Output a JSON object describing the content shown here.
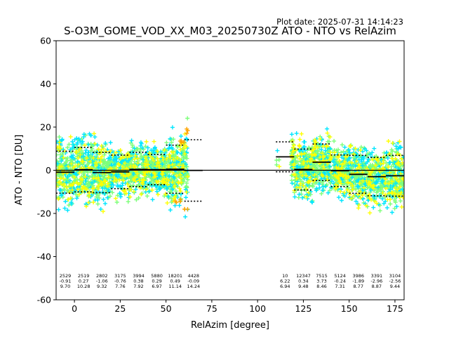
{
  "plot_date": "Plot date: 2025-07-31 14:14:23",
  "chart_data": {
    "type": "scatter",
    "title": "S-O3M_GOME_VOD_XX_M03_20250730Z ATO - NTO vs RelAzim",
    "xlabel": "RelAzim [degree]",
    "ylabel": "ATO - NTO [DU]",
    "xlim": [
      -10,
      180
    ],
    "ylim": [
      -60,
      60
    ],
    "xticks": [
      0,
      25,
      50,
      75,
      100,
      125,
      150,
      175
    ],
    "yticks": [
      -60,
      -40,
      -20,
      0,
      20,
      40,
      60
    ],
    "grid": false,
    "marker": "+",
    "colormap": [
      "#0030f0",
      "#00e6ff",
      "#7dff7a",
      "#ffff00",
      "#ffa500"
    ],
    "zero_line": 0,
    "bins": [
      {
        "x": [
          -10,
          0
        ],
        "count": "2529",
        "mean": "-0.91",
        "std": "9.70"
      },
      {
        "x": [
          0,
          10
        ],
        "count": "2519",
        "mean": "0.27",
        "std": "10.28"
      },
      {
        "x": [
          10,
          20
        ],
        "count": "2802",
        "mean": "-1.06",
        "std": "9.32"
      },
      {
        "x": [
          20,
          30
        ],
        "count": "3175",
        "mean": "-0.76",
        "std": "7.76"
      },
      {
        "x": [
          30,
          40
        ],
        "count": "3994",
        "mean": "0.38",
        "std": "7.92"
      },
      {
        "x": [
          40,
          50
        ],
        "count": "5880",
        "mean": "0.29",
        "std": "6.97"
      },
      {
        "x": [
          50,
          60
        ],
        "count": "18201",
        "mean": "0.49",
        "std": "11.14"
      },
      {
        "x": [
          60,
          70
        ],
        "count": "4428",
        "mean": "-0.09",
        "std": "14.24"
      },
      {
        "x": [
          110,
          120
        ],
        "count": "10",
        "mean": "6.22",
        "std": "6.94"
      },
      {
        "x": [
          120,
          130
        ],
        "count": "12347",
        "mean": "0.34",
        "std": "9.48"
      },
      {
        "x": [
          130,
          140
        ],
        "count": "7515",
        "mean": "3.73",
        "std": "8.46"
      },
      {
        "x": [
          140,
          150
        ],
        "count": "5124",
        "mean": "-0.24",
        "std": "7.31"
      },
      {
        "x": [
          150,
          160
        ],
        "count": "3986",
        "mean": "-1.89",
        "std": "8.77"
      },
      {
        "x": [
          160,
          170
        ],
        "count": "3391",
        "mean": "-2.96",
        "std": "8.87"
      },
      {
        "x": [
          170,
          180
        ],
        "count": "3104",
        "mean": "-2.56",
        "std": "9.44"
      }
    ]
  }
}
